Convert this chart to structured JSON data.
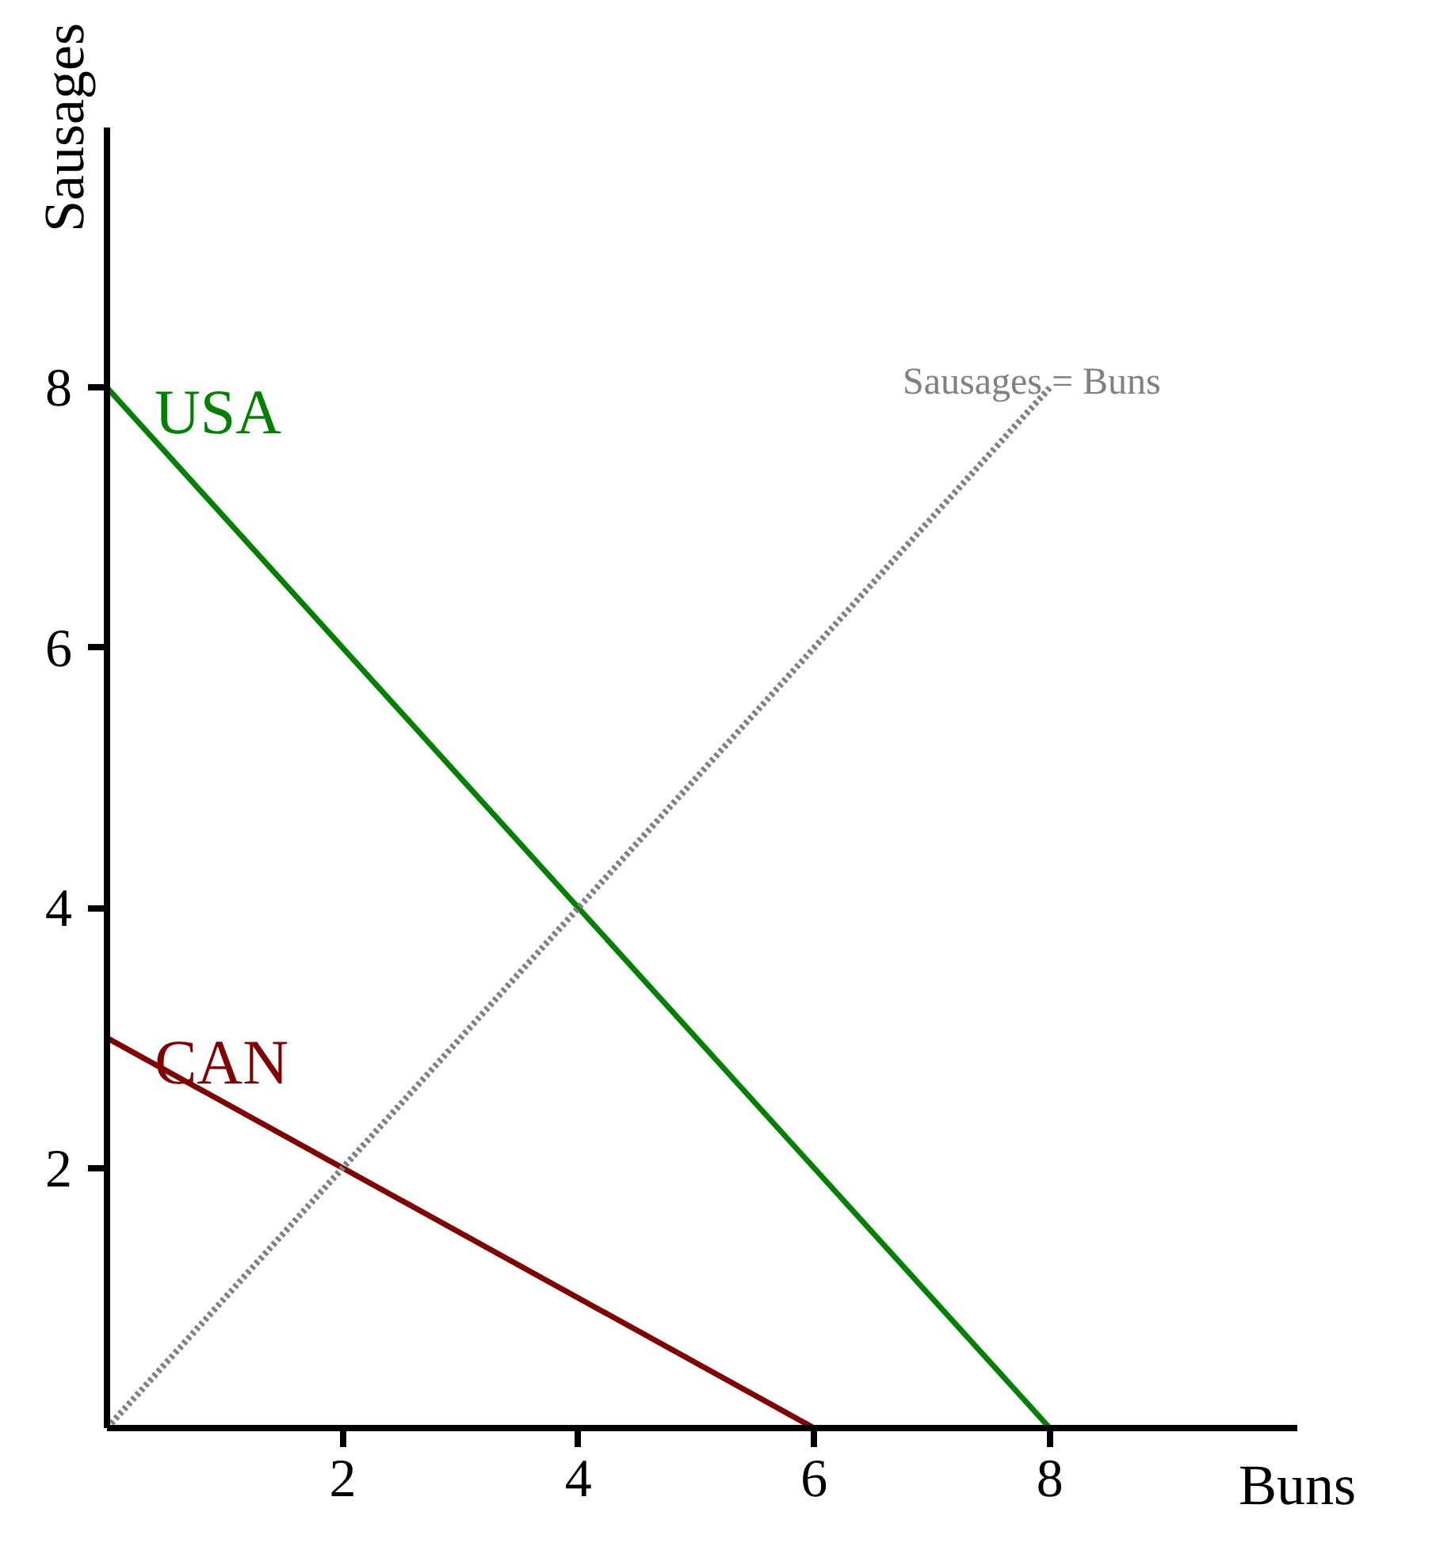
{
  "chart_data": {
    "type": "line",
    "xlabel": "Buns",
    "ylabel": "Sausages",
    "xlim": [
      0,
      10.1
    ],
    "ylim": [
      0,
      10
    ],
    "xticks": [
      2,
      4,
      6,
      8
    ],
    "yticks": [
      2,
      4,
      6,
      8
    ],
    "grid": false,
    "legend": false,
    "marker": "none",
    "series": [
      {
        "name": "USA",
        "color": "#008000",
        "x": [
          0,
          8
        ],
        "values": [
          8,
          0
        ],
        "line_style": "solid"
      },
      {
        "name": "CAN",
        "color": "#800000",
        "x": [
          0,
          6
        ],
        "values": [
          3,
          0
        ],
        "line_style": "solid"
      },
      {
        "name": "Sausages = Buns",
        "color": "#808080",
        "x": [
          0,
          8
        ],
        "values": [
          0,
          8
        ],
        "line_style": "dotted"
      }
    ]
  }
}
